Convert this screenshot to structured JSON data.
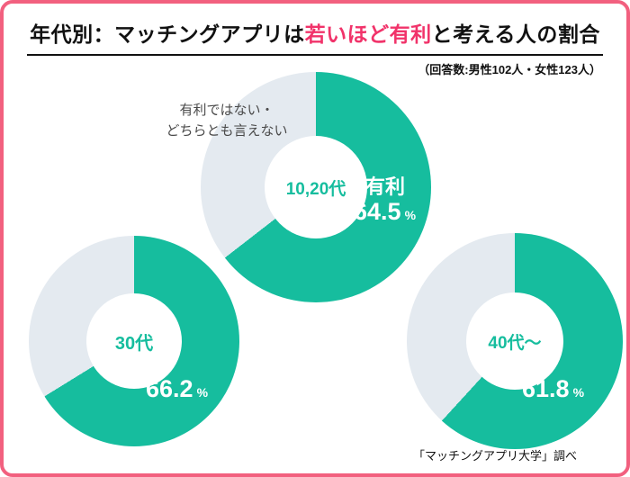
{
  "title": {
    "prefix": "年代別：マッチングアプリは",
    "highlight": "若いほど有利",
    "suffix": "と考える人の割合"
  },
  "note": "（回答数:男性102人・女性123人）",
  "annotation": {
    "line1": "有利ではない・",
    "line2": "どちらとも言えない"
  },
  "footer": "「マッチングアプリ大学」調べ",
  "colors": {
    "favorable": "#16bd9e",
    "unfavorable": "#e4eaf0",
    "accent": "#f1336a",
    "border": "#f2607f"
  },
  "chart_data": {
    "type": "pie",
    "unit": "%",
    "title": "年代別：マッチングアプリは若いほど有利と考える人の割合",
    "note": "回答数:男性102人・女性123人",
    "source": "「マッチングアプリ大学」調べ",
    "legend_position": "inline",
    "series_labels": {
      "favorable": "有利",
      "unfavorable": "有利ではない・どちらとも言えない"
    },
    "charts": [
      {
        "category": "10,20代",
        "favorable": 64.5,
        "unfavorable": 35.5
      },
      {
        "category": "30代",
        "favorable": 66.2,
        "unfavorable": 33.8
      },
      {
        "category": "40代〜",
        "favorable": 61.8,
        "unfavorable": 38.2
      }
    ]
  }
}
